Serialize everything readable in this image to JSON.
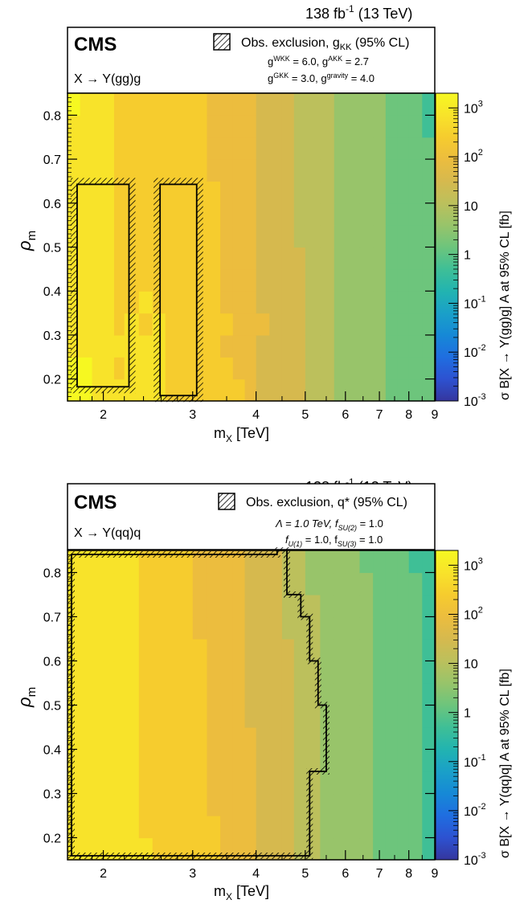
{
  "panels": [
    {
      "lumi": "138 fb",
      "lumi_sup": "-1",
      "lumi_energy": " (13 TeV)",
      "experiment": "CMS",
      "process": "X → Y(gg)g",
      "legend": {
        "label": "Obs. exclusion, ",
        "label_main": "g",
        "label_sub": "KK",
        "label_tail": " (95% CL)",
        "params": [
          {
            "name": "g",
            "sup": "WKK",
            "text": " = 6.0, "
          },
          {
            "name": "g",
            "sup": "AKK",
            "text": "  = 2.7"
          }
        ],
        "params2": [
          {
            "name": "g",
            "sup": "GKK",
            "text": " = 3.0, "
          },
          {
            "name": "g",
            "sup": "gravity",
            "text": " = 4.0"
          }
        ]
      },
      "xlabel": "m",
      "xlabel_sub": "X",
      "xlabel_unit": " [TeV]",
      "ylabel": "ρ",
      "ylabel_sub": "m",
      "zlabel": "σ B[X → Y(gg)g] A at  95% CL [fb]"
    },
    {
      "lumi": "138 fb",
      "lumi_sup": "-1",
      "lumi_energy": " (13 TeV)",
      "experiment": "CMS",
      "process": "X → Y(qq)q",
      "legend": {
        "label": "Obs. exclusion, q* (95% CL)",
        "line1": "Λ = 1.0 TeV, f",
        "line1_sub": "SU(2)",
        "line1_tail": " = 1.0",
        "line2_a": "f",
        "line2_a_sub": "U(1)",
        "line2_mid": " = 1.0, f",
        "line2_b_sub": "SU(3)",
        "line2_tail": " = 1.0"
      },
      "xlabel": "m",
      "xlabel_sub": "X",
      "xlabel_unit": " [TeV]",
      "ylabel": "ρ",
      "ylabel_sub": "m",
      "zlabel": "σ B[X → Y(qq)q] A at  95% CL [fb]"
    }
  ],
  "colorbar_ticks": [
    {
      "base": "10",
      "exp": "3"
    },
    {
      "base": "10",
      "exp": "2"
    },
    {
      "base": "10",
      "exp": ""
    },
    {
      "base": "1",
      "exp": ""
    },
    {
      "base": "10",
      "exp": "-1"
    },
    {
      "base": "10",
      "exp": "-2"
    },
    {
      "base": "10",
      "exp": "-3"
    }
  ],
  "palette": [
    "#35369e",
    "#2d52d1",
    "#1f6ee0",
    "#1689d6",
    "#1aa0c8",
    "#22b4b0",
    "#3fbf96",
    "#6dc57c",
    "#98c46a",
    "#bcc05c",
    "#d6b94e",
    "#ecbd3e",
    "#f6cc2e",
    "#f8e32a",
    "#f6f821"
  ],
  "chart_data": [
    {
      "type": "heatmap",
      "title": "X → Y(gg)g",
      "xlabel": "m_X [TeV]",
      "ylabel": "ρ_m",
      "zlabel": "σ B[X → Y(gg)g] A at 95% CL [fb]",
      "xscale": "log",
      "xlim": [
        1.7,
        9.0
      ],
      "ylim": [
        0.15,
        0.85
      ],
      "zscale": "log",
      "zlim": [
        0.001,
        2000
      ],
      "x_ticks": [
        "2",
        "3",
        "4",
        "5",
        "6",
        "7",
        "8",
        "9"
      ],
      "y_ticks": [
        "0.2",
        "0.3",
        "0.4",
        "0.5",
        "0.6",
        "0.7",
        "0.8"
      ],
      "z_ticks": [
        "10^3",
        "10^2",
        "10",
        "1",
        "10^-1",
        "10^-2",
        "10^-3"
      ],
      "x_bins": [
        1.7,
        1.8,
        1.9,
        2.0,
        2.1,
        2.2,
        2.35,
        2.5,
        2.65,
        2.8,
        3.0,
        3.2,
        3.4,
        3.6,
        3.8,
        4.0,
        4.25,
        4.5,
        4.75,
        5.0,
        5.35,
        5.7,
        6.0,
        6.4,
        6.8,
        7.2,
        7.6,
        8.0,
        8.5,
        9.0
      ],
      "y_bins": [
        0.15,
        0.2,
        0.25,
        0.3,
        0.35,
        0.4,
        0.45,
        0.5,
        0.55,
        0.6,
        0.65,
        0.7,
        0.75,
        0.8,
        0.85
      ],
      "z": [
        [
          1500,
          900,
          320,
          400,
          300,
          330,
          450,
          370,
          250,
          220,
          140,
          150,
          160,
          110,
          80,
          40,
          35,
          20,
          16,
          11,
          8,
          6,
          5,
          3,
          2.5,
          2.0,
          1.6,
          1.0,
          0.9
        ],
        [
          1400,
          850,
          450,
          350,
          280,
          350,
          400,
          360,
          220,
          220,
          130,
          140,
          110,
          80,
          60,
          40,
          35,
          20,
          16,
          11,
          8,
          6,
          5,
          3,
          2.5,
          2.0,
          1.6,
          1.0,
          0.9
        ],
        [
          700,
          600,
          450,
          300,
          300,
          320,
          350,
          300,
          200,
          210,
          140,
          110,
          100,
          90,
          50,
          40,
          35,
          22,
          16,
          11,
          7,
          5,
          5,
          3,
          2.5,
          2.0,
          1.6,
          1.1,
          0.9
        ],
        [
          750,
          550,
          450,
          300,
          280,
          300,
          260,
          300,
          200,
          180,
          130,
          120,
          130,
          100,
          60,
          45,
          35,
          22,
          16,
          10,
          8,
          6,
          5,
          3,
          2.5,
          2.0,
          1.6,
          1.1,
          0.9
        ],
        [
          700,
          600,
          400,
          320,
          280,
          250,
          300,
          250,
          200,
          180,
          130,
          120,
          95,
          75,
          55,
          40,
          35,
          22,
          16,
          10,
          8,
          6,
          5,
          3,
          2.5,
          2.0,
          1.6,
          1.1,
          0.9
        ],
        [
          650,
          600,
          380,
          320,
          280,
          250,
          280,
          250,
          200,
          200,
          140,
          120,
          90,
          75,
          60,
          40,
          30,
          22,
          16,
          10,
          8,
          6,
          4,
          3,
          2.5,
          2.0,
          1.6,
          1.1,
          0.9
        ],
        [
          650,
          600,
          380,
          320,
          280,
          250,
          280,
          240,
          200,
          180,
          140,
          120,
          80,
          75,
          60,
          40,
          30,
          22,
          16,
          10,
          8,
          6,
          4,
          3,
          2.5,
          2.0,
          1.6,
          1.1,
          0.9
        ],
        [
          650,
          550,
          380,
          320,
          280,
          250,
          260,
          230,
          200,
          160,
          120,
          110,
          80,
          75,
          55,
          40,
          30,
          22,
          15,
          10,
          8,
          6,
          4,
          3,
          2.5,
          2.0,
          1.6,
          1.1,
          0.9
        ],
        [
          700,
          550,
          400,
          320,
          280,
          250,
          260,
          230,
          200,
          160,
          120,
          110,
          80,
          70,
          55,
          40,
          30,
          22,
          15,
          10,
          8,
          6,
          4,
          3,
          2.5,
          2.0,
          1.6,
          1.1,
          0.9
        ],
        [
          700,
          550,
          400,
          320,
          280,
          250,
          260,
          230,
          200,
          160,
          120,
          110,
          80,
          70,
          55,
          40,
          30,
          22,
          15,
          10,
          8,
          6,
          4,
          3,
          2.5,
          2.0,
          1.6,
          1.1,
          0.9
        ],
        [
          700,
          550,
          400,
          320,
          280,
          250,
          260,
          230,
          180,
          150,
          120,
          100,
          80,
          70,
          50,
          38,
          30,
          22,
          15,
          10,
          8,
          6,
          4,
          3,
          2.5,
          2.0,
          1.6,
          1.1,
          0.9
        ],
        [
          750,
          550,
          400,
          320,
          280,
          250,
          260,
          230,
          180,
          150,
          110,
          100,
          80,
          65,
          50,
          38,
          30,
          20,
          14,
          10,
          8,
          6,
          4,
          3,
          2.5,
          2.0,
          1.6,
          1.1,
          0.9
        ],
        [
          750,
          550,
          400,
          320,
          280,
          250,
          260,
          220,
          180,
          150,
          110,
          95,
          80,
          65,
          50,
          38,
          28,
          20,
          14,
          10,
          7,
          5,
          4,
          3,
          2.5,
          2.0,
          1.6,
          1.1,
          0.8
        ],
        [
          800,
          600,
          420,
          330,
          280,
          250,
          260,
          220,
          180,
          150,
          110,
          95,
          80,
          65,
          50,
          38,
          28,
          20,
          14,
          10,
          7,
          5,
          4,
          3,
          2.5,
          2.0,
          1.5,
          1.0,
          0.8
        ]
      ],
      "exclusion_regions": [
        {
          "x_range": [
            1.75,
            2.28
          ],
          "y_range": [
            0.175,
            0.65
          ]
        },
        {
          "x_range": [
            2.55,
            3.1
          ],
          "y_range": [
            0.155,
            0.65
          ]
        }
      ]
    },
    {
      "type": "heatmap",
      "title": "X → Y(qq)q",
      "xlabel": "m_X [TeV]",
      "ylabel": "ρ_m",
      "zlabel": "σ B[X → Y(qq)q] A at 95% CL [fb]",
      "xscale": "log",
      "xlim": [
        1.7,
        9.0
      ],
      "ylim": [
        0.15,
        0.85
      ],
      "zscale": "log",
      "zlim": [
        0.001,
        2000
      ],
      "x_ticks": [
        "2",
        "3",
        "4",
        "5",
        "6",
        "7",
        "8",
        "9"
      ],
      "y_ticks": [
        "0.2",
        "0.3",
        "0.4",
        "0.5",
        "0.6",
        "0.7",
        "0.8"
      ],
      "z_ticks": [
        "10^3",
        "10^2",
        "10",
        "1",
        "10^-1",
        "10^-2",
        "10^-3"
      ],
      "x_bins": [
        1.7,
        1.8,
        1.9,
        2.0,
        2.1,
        2.2,
        2.35,
        2.5,
        2.65,
        2.8,
        3.0,
        3.2,
        3.4,
        3.6,
        3.8,
        4.0,
        4.25,
        4.5,
        4.75,
        5.0,
        5.35,
        5.7,
        6.0,
        6.4,
        6.8,
        7.2,
        7.6,
        8.0,
        8.5,
        9.0
      ],
      "y_bins": [
        0.15,
        0.2,
        0.25,
        0.3,
        0.35,
        0.4,
        0.45,
        0.5,
        0.55,
        0.6,
        0.65,
        0.7,
        0.75,
        0.8,
        0.85
      ],
      "z": [
        [
          600,
          500,
          450,
          420,
          400,
          350,
          300,
          250,
          200,
          170,
          150,
          120,
          100,
          70,
          50,
          40,
          30,
          22,
          15,
          10,
          6,
          4,
          3,
          2.5,
          2.0,
          1.6,
          1.2,
          0.9,
          0.8
        ],
        [
          650,
          550,
          450,
          420,
          380,
          330,
          280,
          240,
          200,
          160,
          140,
          110,
          90,
          65,
          48,
          38,
          28,
          20,
          14,
          9,
          6,
          4,
          3,
          2.5,
          2.0,
          1.6,
          1.2,
          0.9,
          0.8
        ],
        [
          650,
          550,
          450,
          400,
          380,
          330,
          280,
          230,
          190,
          160,
          130,
          100,
          90,
          65,
          45,
          35,
          28,
          20,
          14,
          9,
          6,
          4,
          3,
          2.5,
          2.0,
          1.6,
          1.2,
          0.9,
          0.8
        ],
        [
          650,
          550,
          450,
          400,
          380,
          320,
          270,
          230,
          190,
          150,
          130,
          100,
          80,
          60,
          45,
          35,
          26,
          18,
          13,
          9,
          6,
          4,
          3,
          2.5,
          2.0,
          1.6,
          1.2,
          0.9,
          0.8
        ],
        [
          650,
          550,
          450,
          400,
          370,
          320,
          270,
          220,
          180,
          150,
          120,
          95,
          80,
          60,
          42,
          32,
          25,
          18,
          13,
          8,
          6,
          4,
          3,
          2.5,
          2.0,
          1.6,
          1.2,
          0.9,
          0.8
        ],
        [
          650,
          550,
          450,
          400,
          370,
          320,
          270,
          220,
          180,
          150,
          120,
          95,
          80,
          60,
          42,
          32,
          25,
          18,
          12,
          8,
          5,
          4,
          3,
          2.5,
          2.0,
          1.6,
          1.2,
          0.9,
          0.8
        ],
        [
          650,
          550,
          450,
          400,
          360,
          310,
          260,
          220,
          180,
          140,
          120,
          90,
          75,
          55,
          40,
          30,
          24,
          17,
          12,
          8,
          5,
          4,
          3,
          2.5,
          2.0,
          1.6,
          1.2,
          0.9,
          0.8
        ],
        [
          650,
          550,
          450,
          400,
          360,
          310,
          260,
          210,
          170,
          140,
          110,
          90,
          75,
          55,
          40,
          30,
          24,
          17,
          12,
          8,
          5,
          4,
          3,
          2.5,
          2.0,
          1.6,
          1.2,
          0.9,
          0.8
        ],
        [
          650,
          550,
          450,
          400,
          360,
          300,
          260,
          210,
          170,
          140,
          110,
          90,
          70,
          55,
          40,
          30,
          22,
          16,
          11,
          7,
          5,
          4,
          3,
          2.5,
          2.0,
          1.6,
          1.2,
          0.9,
          0.8
        ],
        [
          650,
          550,
          450,
          400,
          350,
          300,
          250,
          210,
          170,
          140,
          110,
          85,
          70,
          50,
          38,
          28,
          22,
          16,
          11,
          7,
          5,
          4,
          3,
          2.5,
          2.0,
          1.6,
          1.2,
          0.9,
          0.8
        ],
        [
          650,
          550,
          450,
          400,
          350,
          300,
          250,
          200,
          160,
          130,
          100,
          85,
          65,
          50,
          38,
          28,
          20,
          15,
          10,
          7,
          5,
          4,
          3,
          2.5,
          2.0,
          1.6,
          1.2,
          0.9,
          0.8
        ],
        [
          650,
          550,
          450,
          400,
          350,
          300,
          250,
          200,
          160,
          130,
          100,
          80,
          65,
          50,
          36,
          26,
          20,
          15,
          10,
          7,
          5,
          4,
          3,
          2.5,
          2.0,
          1.6,
          1.2,
          0.9,
          0.7
        ],
        [
          650,
          550,
          450,
          400,
          350,
          300,
          250,
          200,
          160,
          130,
          100,
          80,
          60,
          45,
          36,
          26,
          18,
          14,
          9,
          6,
          5,
          4,
          3,
          2.5,
          2.0,
          1.6,
          1.2,
          0.9,
          0.7
        ],
        [
          650,
          550,
          450,
          400,
          350,
          300,
          250,
          200,
          160,
          130,
          100,
          80,
          60,
          45,
          34,
          24,
          18,
          13,
          9,
          6,
          4,
          3,
          2.5,
          2.0,
          1.6,
          1.3,
          1.0,
          0.8,
          0.7
        ]
      ],
      "exclusion_boundary_upper_x": [
        [
          0.15,
          5.1
        ],
        [
          0.35,
          5.5
        ],
        [
          0.5,
          5.3
        ],
        [
          0.6,
          5.1
        ],
        [
          0.7,
          4.9
        ],
        [
          0.75,
          4.6
        ],
        [
          0.85,
          4.4
        ]
      ]
    }
  ]
}
